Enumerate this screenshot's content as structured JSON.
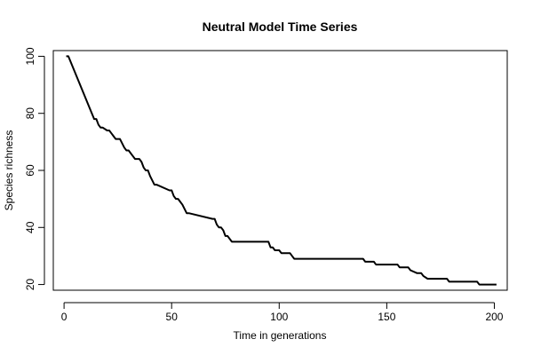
{
  "chart_data": {
    "type": "line",
    "title": "Neutral Model Time Series",
    "xlabel": "Time in generations",
    "ylabel": "Species richness",
    "xlim": [
      -5,
      206
    ],
    "ylim": [
      18,
      102
    ],
    "x_ticks": [
      0,
      50,
      100,
      150,
      200
    ],
    "y_ticks": [
      20,
      40,
      60,
      80,
      100
    ],
    "grid": false,
    "legend": "none",
    "line_color": "#000000",
    "series": [
      {
        "x": [
          1,
          2,
          14,
          15,
          16,
          17,
          18,
          20,
          21,
          22,
          24,
          25,
          26,
          28,
          29,
          30,
          32,
          33,
          35,
          36,
          37,
          38,
          39,
          40,
          42,
          43,
          49,
          50,
          51,
          52,
          53,
          54,
          55,
          57,
          58,
          69,
          70,
          71,
          72,
          73,
          74,
          75,
          76,
          78,
          95,
          96,
          97,
          98,
          100,
          101,
          102,
          105,
          106,
          107,
          109,
          139,
          140,
          144,
          145,
          155,
          156,
          160,
          161,
          164,
          165,
          166,
          167,
          169,
          170,
          178,
          179,
          192,
          193,
          201
        ],
        "y": [
          100,
          100,
          78,
          78,
          76,
          75,
          75,
          74,
          74,
          73,
          71,
          71,
          71,
          68,
          67,
          67,
          65,
          64,
          64,
          63,
          61,
          60,
          60,
          58,
          55,
          55,
          53,
          53,
          51,
          50,
          50,
          49,
          48,
          45,
          45,
          43,
          43,
          41,
          40,
          40,
          39,
          37,
          37,
          35,
          35,
          33,
          33,
          32,
          32,
          31,
          31,
          31,
          30,
          29,
          29,
          29,
          28,
          28,
          27,
          27,
          26,
          26,
          25,
          24,
          24,
          24,
          23,
          22,
          22,
          22,
          21,
          21,
          20,
          20
        ]
      }
    ]
  }
}
